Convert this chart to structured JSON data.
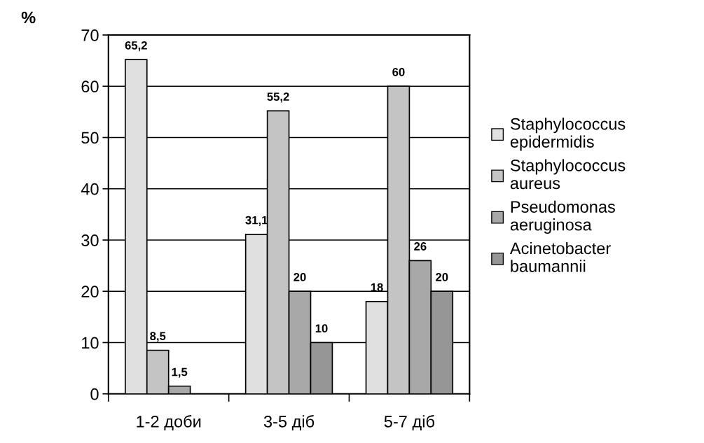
{
  "chart_data": {
    "type": "bar",
    "ylabel": "%",
    "categories": [
      "1-2 доби",
      "3-5 діб",
      "5-7 діб"
    ],
    "series": [
      {
        "name": "Staphylococcus epidermidis",
        "color": "#e0e0e0",
        "values": [
          65.2,
          31.1,
          18
        ],
        "value_labels": [
          "65,2",
          "31,1",
          "18"
        ]
      },
      {
        "name": "Staphylococcus aureus",
        "color": "#c4c4c4",
        "values": [
          8.5,
          55.2,
          60
        ],
        "value_labels": [
          "8,5",
          "55,2",
          "60"
        ]
      },
      {
        "name": "Pseudomonas aeruginosa",
        "color": "#a8a8a8",
        "values": [
          1.5,
          20,
          26
        ],
        "value_labels": [
          "1,5",
          "20",
          "26"
        ]
      },
      {
        "name": "Acinetobacter baumannii",
        "color": "#969696",
        "values": [
          null,
          10,
          20
        ],
        "value_labels": [
          null,
          "10",
          "20"
        ]
      }
    ],
    "ylim": [
      0,
      70
    ],
    "yticks": [
      0,
      10,
      20,
      30,
      40,
      50,
      60,
      70
    ],
    "grid": "y",
    "legend": "right"
  }
}
